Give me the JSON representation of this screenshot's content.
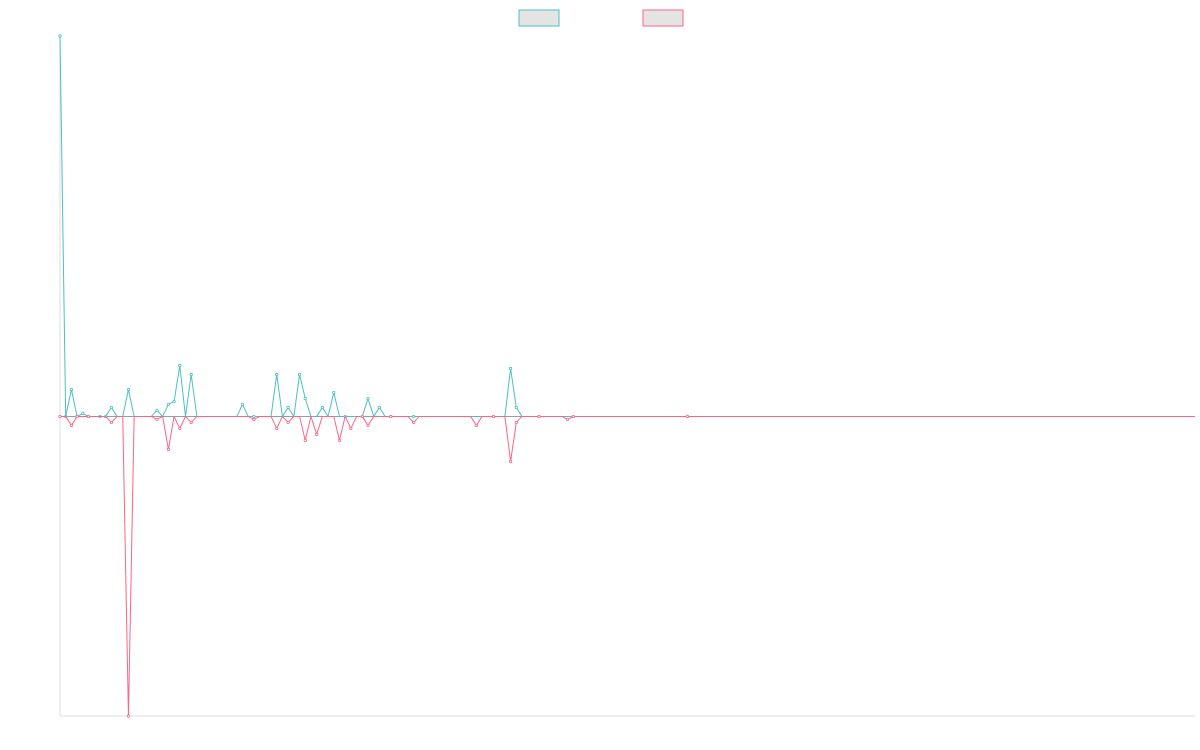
{
  "chart_data": {
    "type": "line",
    "title": "",
    "xlabel": "",
    "ylabel": "",
    "legend_position": "top-center",
    "grid": false,
    "n_points": 200,
    "xlim": [
      0,
      199
    ],
    "ylim": [
      -1.0,
      1.27
    ],
    "colors": {
      "series1": "#4BC0C0",
      "series2": "#FF6384",
      "swatch_fill": "#E4E4E4",
      "axis": "#DDDDDD"
    },
    "series": [
      {
        "name": "",
        "color": "#4BC0C0",
        "points": [
          [
            0,
            1.27
          ],
          [
            1,
            0.0
          ],
          [
            2,
            0.09
          ],
          [
            3,
            0.0
          ],
          [
            4,
            0.01
          ],
          [
            5,
            0.0
          ],
          [
            7,
            0.0
          ],
          [
            8,
            0.0
          ],
          [
            9,
            0.03
          ],
          [
            12,
            0.09
          ],
          [
            17,
            0.02
          ],
          [
            19,
            0.04
          ],
          [
            20,
            0.05
          ],
          [
            21,
            0.17
          ],
          [
            23,
            0.14
          ],
          [
            32,
            0.04
          ],
          [
            34,
            0.0
          ],
          [
            38,
            0.14
          ],
          [
            40,
            0.03
          ],
          [
            42,
            0.14
          ],
          [
            43,
            0.06
          ],
          [
            46,
            0.03
          ],
          [
            48,
            0.08
          ],
          [
            50,
            0.0
          ],
          [
            54,
            0.06
          ],
          [
            56,
            0.03
          ],
          [
            58,
            0.0
          ],
          [
            62,
            0.0
          ],
          [
            76,
            0.0
          ],
          [
            79,
            0.16
          ],
          [
            80,
            0.03
          ],
          [
            84,
            0.0
          ],
          [
            110,
            0.0
          ]
        ]
      },
      {
        "name": "",
        "color": "#FF6384",
        "points": [
          [
            0,
            0.0
          ],
          [
            2,
            -0.03
          ],
          [
            3,
            0.0
          ],
          [
            5,
            0.0
          ],
          [
            9,
            -0.02
          ],
          [
            12,
            -1.0
          ],
          [
            17,
            -0.01
          ],
          [
            19,
            -0.11
          ],
          [
            21,
            -0.04
          ],
          [
            23,
            -0.02
          ],
          [
            34,
            -0.01
          ],
          [
            38,
            -0.04
          ],
          [
            40,
            -0.02
          ],
          [
            43,
            -0.08
          ],
          [
            45,
            -0.06
          ],
          [
            49,
            -0.08
          ],
          [
            51,
            -0.04
          ],
          [
            53,
            0.0
          ],
          [
            54,
            -0.03
          ],
          [
            58,
            0.0
          ],
          [
            62,
            -0.02
          ],
          [
            73,
            -0.03
          ],
          [
            76,
            0.0
          ],
          [
            79,
            -0.15
          ],
          [
            80,
            -0.02
          ],
          [
            84,
            0.0
          ],
          [
            89,
            -0.01
          ],
          [
            90,
            0.0
          ],
          [
            110,
            0.0
          ]
        ]
      }
    ]
  }
}
